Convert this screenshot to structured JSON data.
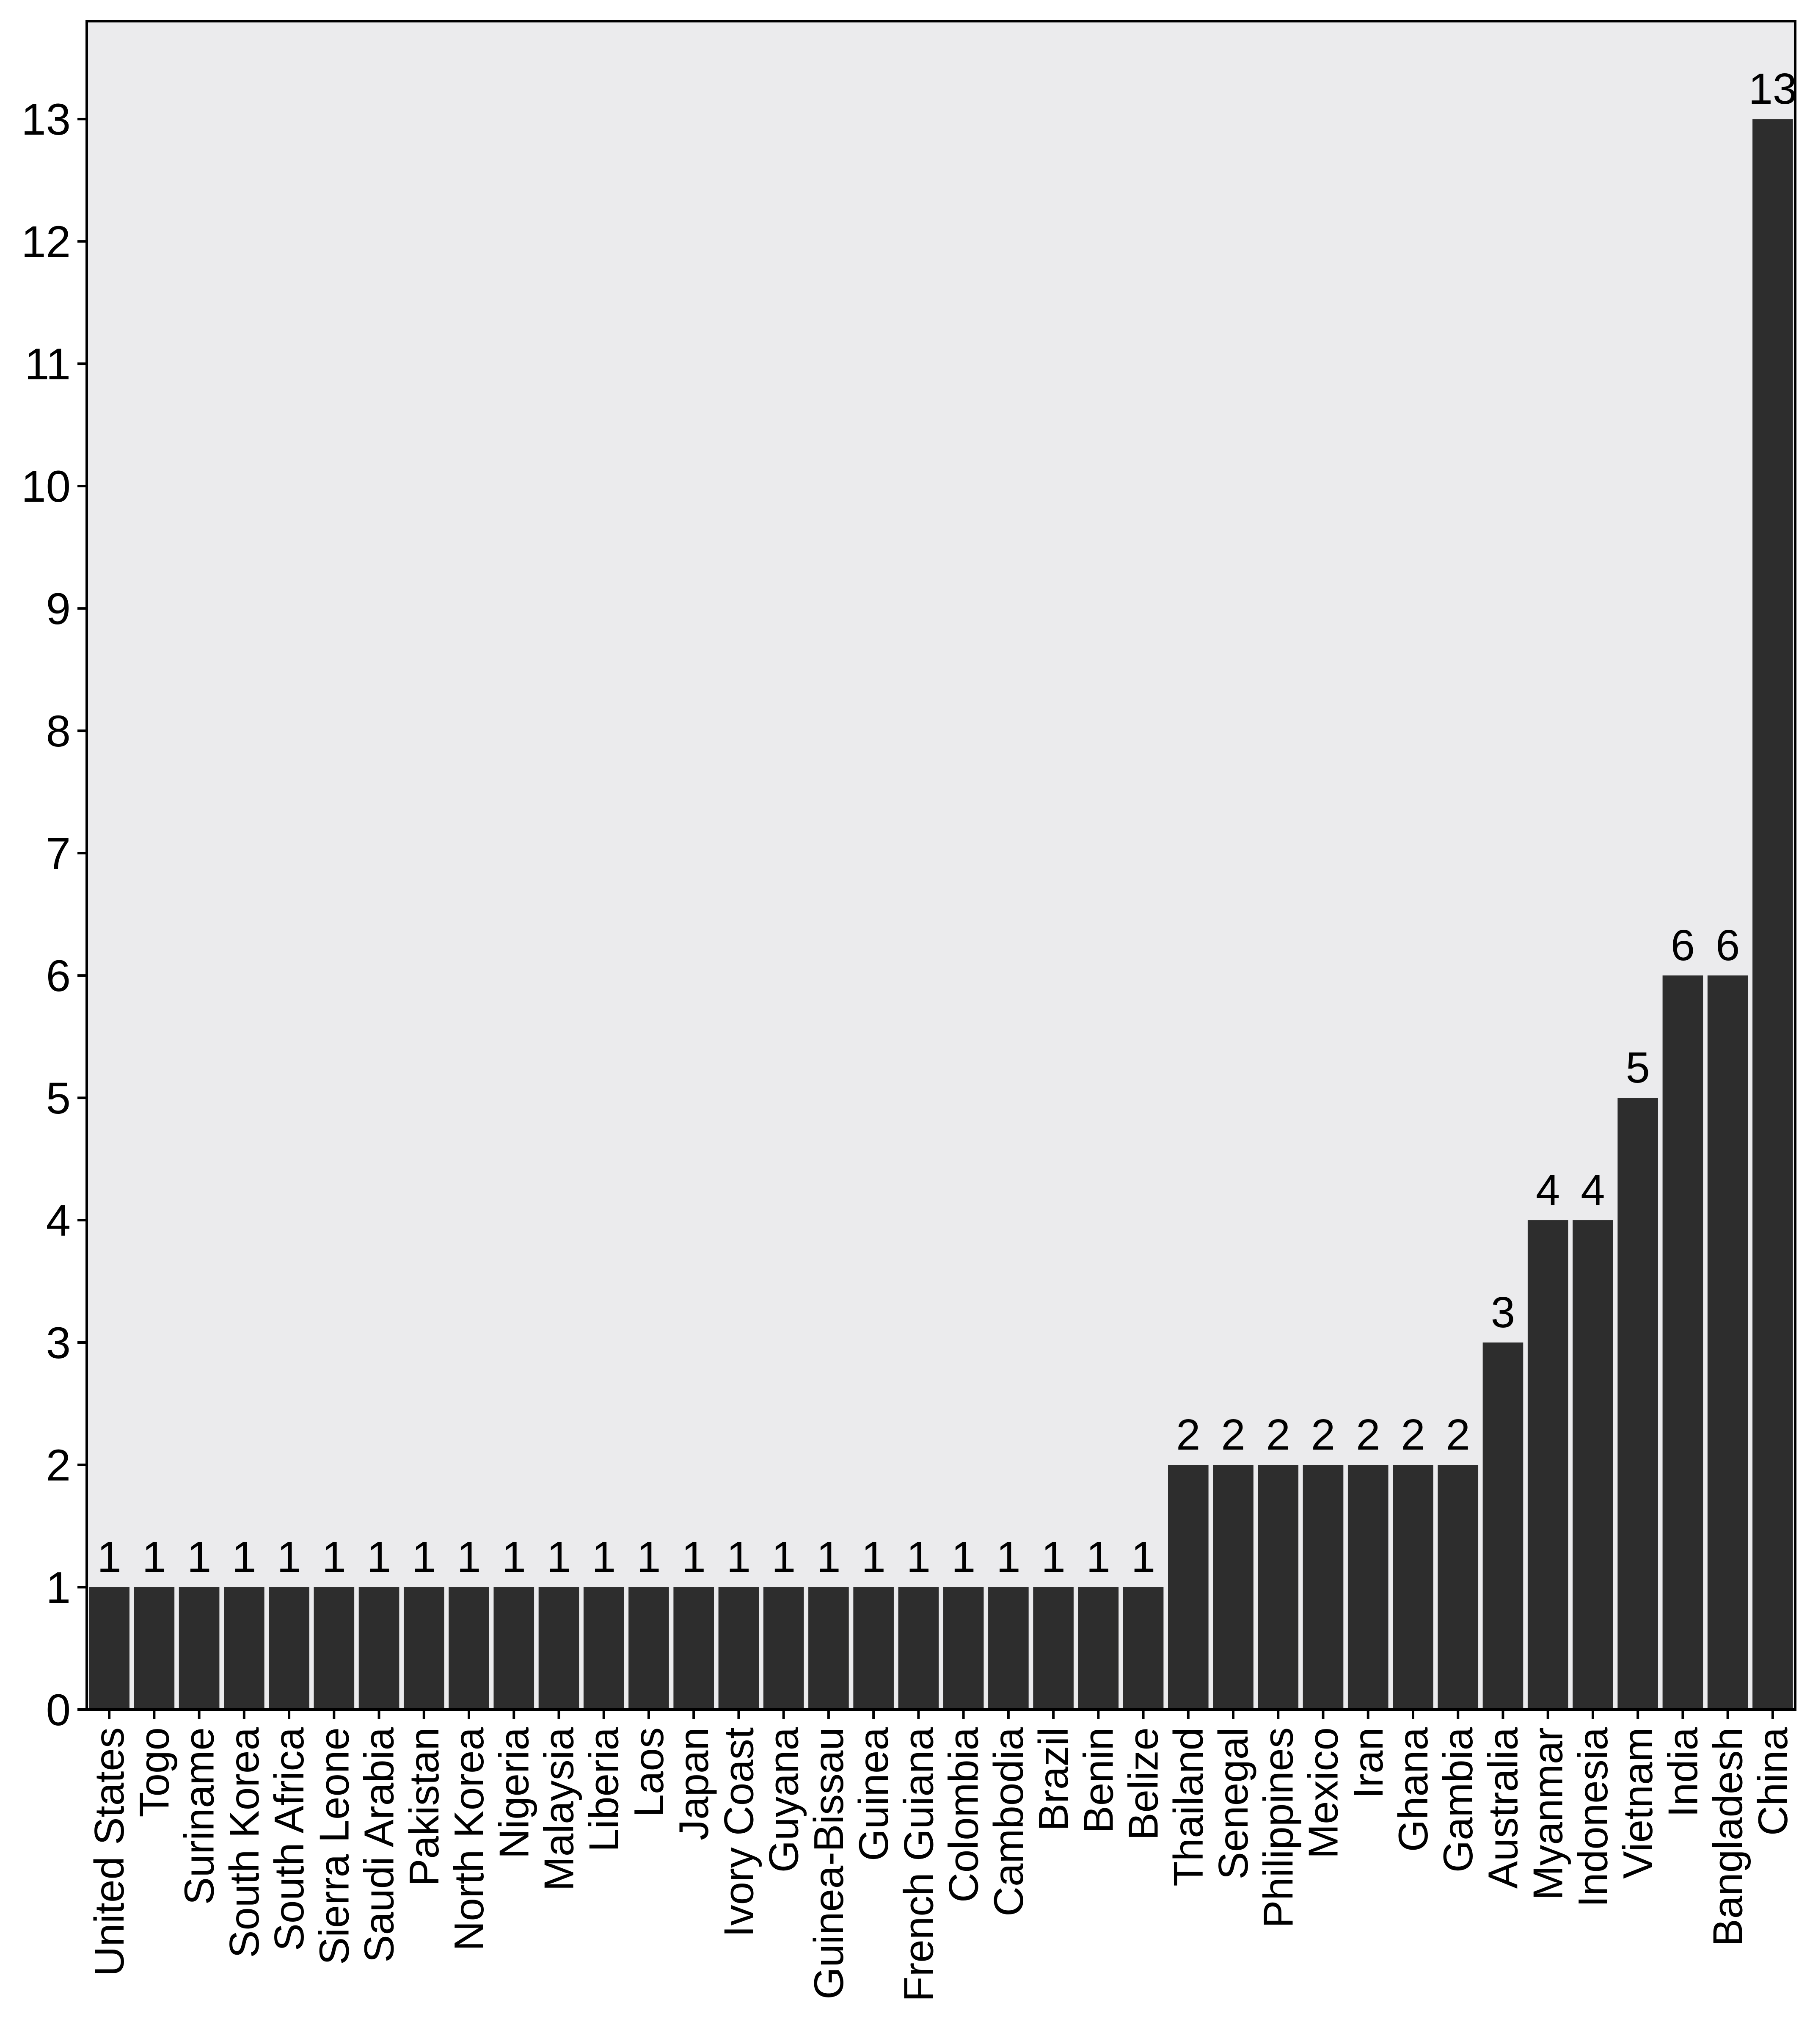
{
  "chart_data": {
    "type": "bar",
    "title": "",
    "xlabel": "",
    "ylabel": "",
    "ylim": [
      0,
      13.8
    ],
    "yticks": [
      0,
      1,
      2,
      3,
      4,
      5,
      6,
      7,
      8,
      9,
      10,
      11,
      12,
      13
    ],
    "grid": false,
    "legend": "none",
    "categories": [
      "United States",
      "Togo",
      "Suriname",
      "South Korea",
      "South Africa",
      "Sierra Leone",
      "Saudi Arabia",
      "Pakistan",
      "North Korea",
      "Nigeria",
      "Malaysia",
      "Liberia",
      "Laos",
      "Japan",
      "Ivory Coast",
      "Guyana",
      "Guinea-Bissau",
      "Guinea",
      "French Guiana",
      "Colombia",
      "Cambodia",
      "Brazil",
      "Benin",
      "Belize",
      "Thailand",
      "Senegal",
      "Philippines",
      "Mexico",
      "Iran",
      "Ghana",
      "Gambia",
      "Australia",
      "Myanmar",
      "Indonesia",
      "Vietnam",
      "India",
      "Bangladesh",
      "China"
    ],
    "values": [
      1,
      1,
      1,
      1,
      1,
      1,
      1,
      1,
      1,
      1,
      1,
      1,
      1,
      1,
      1,
      1,
      1,
      1,
      1,
      1,
      1,
      1,
      1,
      1,
      2,
      2,
      2,
      2,
      2,
      2,
      2,
      3,
      4,
      4,
      5,
      6,
      6,
      13
    ],
    "data_labels": [
      "1",
      "1",
      "1",
      "1",
      "1",
      "1",
      "1",
      "1",
      "1",
      "1",
      "1",
      "1",
      "1",
      "1",
      "1",
      "1",
      "1",
      "1",
      "1",
      "1",
      "1",
      "1",
      "1",
      "1",
      "2",
      "2",
      "2",
      "2",
      "2",
      "2",
      "2",
      "3",
      "4",
      "4",
      "5",
      "6",
      "6",
      "13"
    ],
    "colors": {
      "bar": "#2d2d2d",
      "panel_background": "#ebebed",
      "axis": "#000000"
    }
  }
}
